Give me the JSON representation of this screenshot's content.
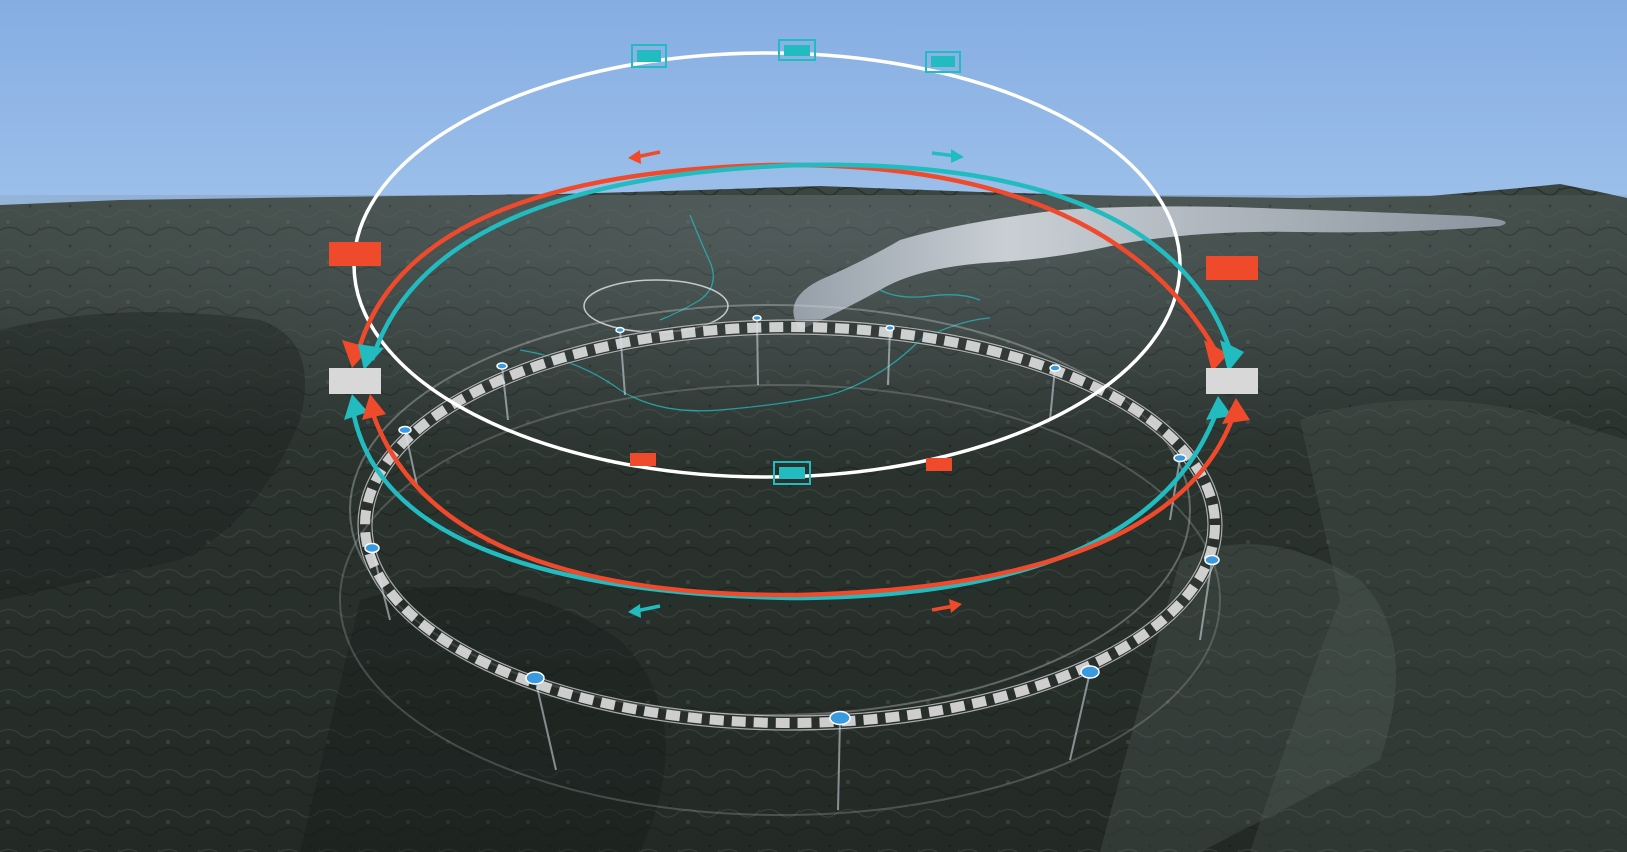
{
  "scene": {
    "description_none": "",
    "colors": {
      "sky": "#8db3e3",
      "terrain_dark": "#1f2622",
      "terrain_mid": "#3a443d",
      "terrain_light": "#5f6b62",
      "lake": "#c9d0d8",
      "ring_white": "#ffffff",
      "beam_red": "#f04a2c",
      "beam_teal": "#22bcc0",
      "tunnel_gray": "#d8d8d8",
      "shaft_blue": "#3a9ae0"
    },
    "icons": {
      "beam_direction_left": "arrow-left-icon",
      "beam_direction_right": "arrow-right-icon"
    }
  }
}
